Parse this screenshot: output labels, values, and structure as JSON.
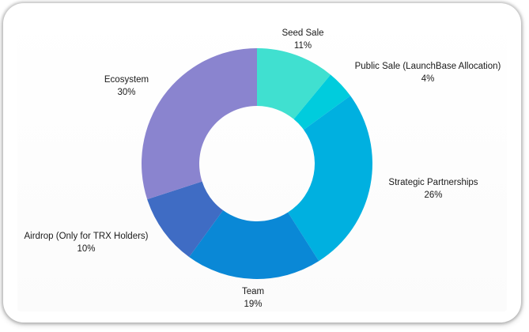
{
  "chart_data": {
    "type": "pie",
    "variant": "donut",
    "slices": [
      {
        "label": "Seed Sale",
        "value": 11,
        "value_label": "11%",
        "color": "#40e0d0"
      },
      {
        "label": "Public Sale (LaunchBase Allocation)",
        "value": 4,
        "value_label": "4%",
        "color": "#00ccdd"
      },
      {
        "label": "Strategic Partnerships",
        "value": 26,
        "value_label": "26%",
        "color": "#00b0e0"
      },
      {
        "label": "Team",
        "value": 19,
        "value_label": "19%",
        "color": "#0a88d6"
      },
      {
        "label": "Airdrop (Only for TRX Holders)",
        "value": 10,
        "value_label": "10%",
        "color": "#3f6cc4"
      },
      {
        "label": "Ecosystem",
        "value": 30,
        "value_label": "30%",
        "color": "#8a84cf"
      }
    ],
    "start_angle_deg": 0,
    "direction": "clockwise",
    "legend": "none"
  }
}
